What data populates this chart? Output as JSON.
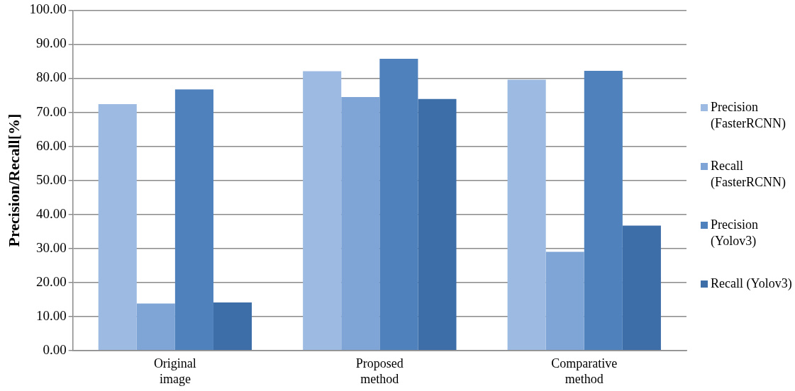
{
  "chart_data": {
    "type": "bar",
    "ylabel": "Precision/Recall[%]",
    "categories": [
      "Original image",
      "Proposed method",
      "Comparative method"
    ],
    "series": [
      {
        "name": "Precision (FasterRCNN)",
        "color": "#9dbbe2",
        "values": [
          72.4,
          82.1,
          79.6
        ]
      },
      {
        "name": "Recall (FasterRCNN)",
        "color": "#7ea5d6",
        "values": [
          13.8,
          74.5,
          29
        ]
      },
      {
        "name": "Precision (Yolov3)",
        "color": "#4f81bd",
        "values": [
          76.7,
          85.7,
          82.2
        ]
      },
      {
        "name": "Recall (Yolov3)",
        "color": "#3e6ea8",
        "values": [
          14.1,
          73.9,
          36.7
        ]
      }
    ],
    "ylim": [
      0,
      100
    ],
    "yticks": [
      {
        "value": 0,
        "label": "0.00"
      },
      {
        "value": 10,
        "label": "10.00"
      },
      {
        "value": 20,
        "label": "20.00"
      },
      {
        "value": 30,
        "label": "30.00"
      },
      {
        "value": 40,
        "label": "40.00"
      },
      {
        "value": 50,
        "label": "50.00"
      },
      {
        "value": 60,
        "label": "60.00"
      },
      {
        "value": 70,
        "label": "70.00"
      },
      {
        "value": 80,
        "label": "80.00"
      },
      {
        "value": 90,
        "label": "90.00"
      },
      {
        "value": 100,
        "label": "100.00"
      }
    ],
    "grid": "y",
    "legend": "right"
  }
}
